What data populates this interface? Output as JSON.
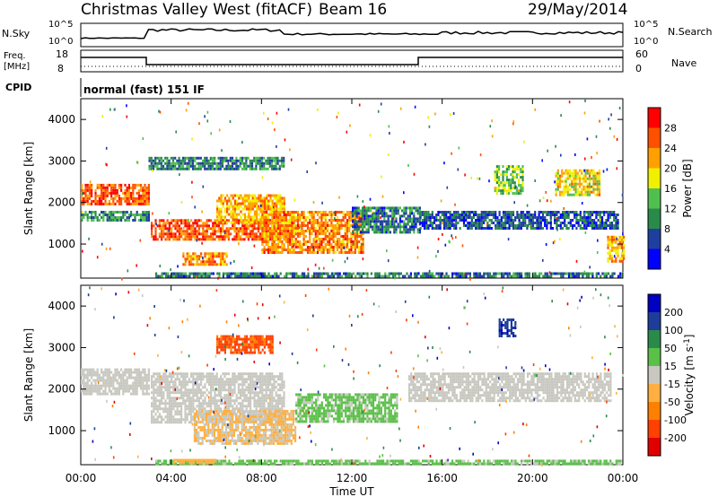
{
  "header": {
    "station": "Christmas Valley West (fitACF)",
    "beam": "Beam 16",
    "date": "29/May/2014"
  },
  "top_panels": {
    "left_label_1": "N.Sky",
    "left_label_2": "Freq.",
    "left_label_3": "[MHz]",
    "left_label_4": "CPID",
    "right_label_1": "N.Search",
    "right_label_2": "Nave",
    "nsky_ticks": [
      "10^5",
      "10^0"
    ],
    "freq_ticks": [
      "18",
      "8"
    ],
    "nsearch_ticks": [
      "10^5",
      "10^0"
    ],
    "nave_ticks": [
      "60",
      "0"
    ],
    "cpid_text": "normal (fast) 151 IF"
  },
  "chart_data": [
    {
      "type": "heatmap",
      "variable": "Power",
      "ylabel": "Slant Range [km]",
      "yticks": [
        "4000",
        "3000",
        "2000",
        "1000"
      ],
      "ylim": [
        180,
        4500
      ],
      "colorbar_label": "Power [dB]",
      "colorbar_ticks": [
        "28",
        "24",
        "20",
        "16",
        "12",
        "8",
        "4"
      ],
      "colorbar_range": [
        0,
        30
      ],
      "colors": [
        "#0000ff",
        "#1f3fa0",
        "#2a8a4a",
        "#4fc050",
        "#f0f000",
        "#ffa000",
        "#ff5000",
        "#ff0000"
      ],
      "regions": [
        {
          "t0": 0.0,
          "t1": 3.0,
          "r0": 1950,
          "r1": 2450,
          "level": 24
        },
        {
          "t0": 0.0,
          "t1": 3.0,
          "r0": 1600,
          "r1": 1800,
          "level": 10
        },
        {
          "t0": 3.1,
          "t1": 9.5,
          "r0": 1100,
          "r1": 1600,
          "level": 24
        },
        {
          "t0": 6.0,
          "t1": 9.0,
          "r0": 1500,
          "r1": 2200,
          "level": 20
        },
        {
          "t0": 8.0,
          "t1": 12.5,
          "r0": 800,
          "r1": 1800,
          "level": 22
        },
        {
          "t0": 12.0,
          "t1": 15.0,
          "r0": 1300,
          "r1": 1900,
          "level": 8
        },
        {
          "t0": 15.0,
          "t1": 23.8,
          "r0": 1350,
          "r1": 1800,
          "level": 6
        },
        {
          "t0": 3.0,
          "t1": 9.0,
          "r0": 2800,
          "r1": 3100,
          "level": 9
        },
        {
          "t0": 18.3,
          "t1": 19.6,
          "r0": 2200,
          "r1": 2900,
          "level": 14
        },
        {
          "t0": 21.0,
          "t1": 23.0,
          "r0": 2200,
          "r1": 2800,
          "level": 18
        },
        {
          "t0": 23.3,
          "t1": 24.0,
          "r0": 600,
          "r1": 1200,
          "level": 20
        },
        {
          "t0": 3.3,
          "t1": 24.0,
          "r0": 200,
          "r1": 320,
          "level": 8
        },
        {
          "t0": 4.5,
          "t1": 6.5,
          "r0": 500,
          "r1": 800,
          "level": 22
        }
      ]
    },
    {
      "type": "heatmap",
      "variable": "Velocity",
      "ylabel": "Slant Range [km]",
      "yticks": [
        "4000",
        "3000",
        "2000",
        "1000"
      ],
      "ylim": [
        180,
        4500
      ],
      "colorbar_label": "Velocity [m s^-1]",
      "colorbar_ticks": [
        "200",
        "100",
        "50",
        "15",
        "-15",
        "-50",
        "-100",
        "-200"
      ],
      "colorbar_range": [
        -250,
        250
      ],
      "colors": [
        "#0000c0",
        "#1e3c9a",
        "#2a8a4a",
        "#5ac048",
        "#c8c8c0",
        "#ffb040",
        "#ff8000",
        "#ff4000",
        "#e00000"
      ],
      "regions": [
        {
          "t0": 0.0,
          "t1": 3.0,
          "r0": 1900,
          "r1": 2500,
          "level": 0
        },
        {
          "t0": 3.1,
          "t1": 9.0,
          "r0": 1200,
          "r1": 2400,
          "level": 0
        },
        {
          "t0": 5.0,
          "t1": 9.5,
          "r0": 700,
          "r1": 1500,
          "level": -30
        },
        {
          "t0": 9.5,
          "t1": 14.0,
          "r0": 1200,
          "r1": 1900,
          "level": 40
        },
        {
          "t0": 6.0,
          "t1": 8.5,
          "r0": 2900,
          "r1": 3300,
          "level": -150
        },
        {
          "t0": 18.5,
          "t1": 19.2,
          "r0": 3300,
          "r1": 3700,
          "level": 180
        },
        {
          "t0": 14.5,
          "t1": 23.5,
          "r0": 1700,
          "r1": 2400,
          "level": 0
        },
        {
          "t0": 3.3,
          "t1": 24.0,
          "r0": 200,
          "r1": 300,
          "level": 40
        },
        {
          "t0": 4.0,
          "t1": 6.0,
          "r0": 200,
          "r1": 320,
          "level": -50
        }
      ]
    }
  ],
  "x_axis": {
    "label": "Time UT",
    "ticks": [
      "00:00",
      "04:00",
      "08:00",
      "12:00",
      "16:00",
      "20:00",
      "00:00"
    ],
    "range_hours": [
      0,
      24
    ]
  }
}
